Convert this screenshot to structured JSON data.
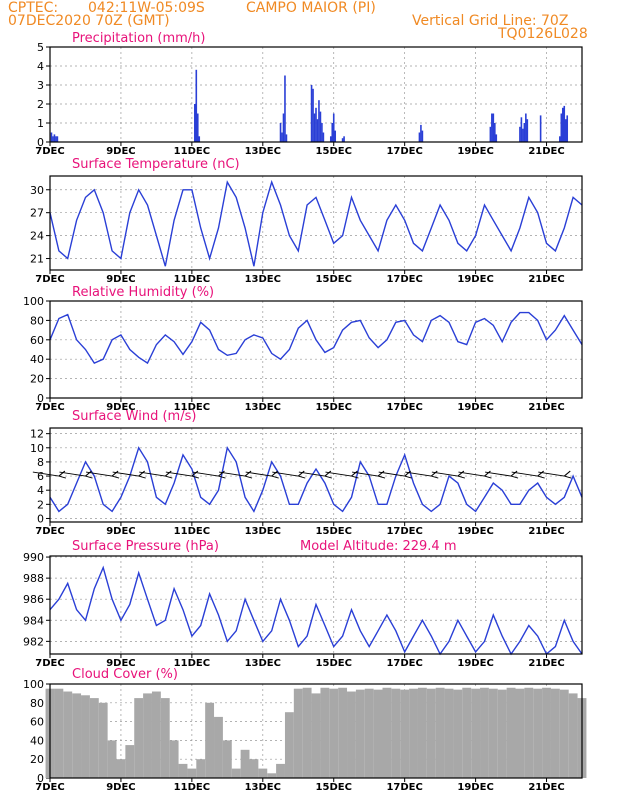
{
  "header": {
    "source": "CPTEC:",
    "coords": "042:11W-05:09S",
    "location": "CAMPO MAIOR (PI)",
    "run": "07DEC2020 70Z (GMT)",
    "grid_note": "Vertical Grid Line: 70Z",
    "code": "TQ0126L028"
  },
  "model_altitude": "Model Altitude: 229.4 m",
  "colors": {
    "header": "#f08a24",
    "title": "#e8127a",
    "series": "#2a3fd6",
    "wind": "#2a3fd6",
    "cloud": "#a8a8a8",
    "grid": "#9a9a9a"
  },
  "chart_data": [
    {
      "type": "bar",
      "title": "Precipitation (mm/h)",
      "ylim": [
        0,
        5
      ],
      "yticks": [
        0,
        1,
        2,
        3,
        4,
        5
      ],
      "grid": true,
      "x_tick_labels": [
        "7DEC",
        "9DEC",
        "11DEC",
        "13DEC",
        "15DEC",
        "17DEC",
        "19DEC",
        "21DEC"
      ],
      "x_unit": "hours since 07DEC 00Z",
      "bars": [
        [
          1,
          0.5
        ],
        [
          2,
          0.3
        ],
        [
          3,
          0.4
        ],
        [
          4,
          0.3
        ],
        [
          5,
          0.3
        ],
        [
          98,
          2.0
        ],
        [
          99,
          3.8
        ],
        [
          100,
          1.5
        ],
        [
          101,
          0.3
        ],
        [
          156,
          1.0
        ],
        [
          157,
          0.5
        ],
        [
          158,
          1.5
        ],
        [
          159,
          3.5
        ],
        [
          160,
          0.4
        ],
        [
          177,
          3.0
        ],
        [
          178,
          2.8
        ],
        [
          179,
          1.5
        ],
        [
          180,
          1.8
        ],
        [
          181,
          1.2
        ],
        [
          182,
          2.2
        ],
        [
          183,
          1.6
        ],
        [
          184,
          1.0
        ],
        [
          185,
          0.5
        ],
        [
          190,
          0.3
        ],
        [
          191,
          1.0
        ],
        [
          192,
          1.5
        ],
        [
          193,
          0.6
        ],
        [
          198,
          0.2
        ],
        [
          199,
          0.3
        ],
        [
          250,
          0.5
        ],
        [
          251,
          0.9
        ],
        [
          252,
          0.6
        ],
        [
          298,
          0.8
        ],
        [
          299,
          1.5
        ],
        [
          300,
          1.5
        ],
        [
          301,
          1.0
        ],
        [
          302,
          0.4
        ],
        [
          318,
          0.8
        ],
        [
          319,
          1.3
        ],
        [
          320,
          0.7
        ],
        [
          321,
          1.0
        ],
        [
          322,
          1.5
        ],
        [
          323,
          1.2
        ],
        [
          332,
          1.4
        ],
        [
          345,
          0.3
        ],
        [
          346,
          1.5
        ],
        [
          347,
          1.8
        ],
        [
          348,
          1.9
        ],
        [
          349,
          1.2
        ],
        [
          350,
          1.4
        ]
      ]
    },
    {
      "type": "line",
      "title": "Surface Temperature (nC)",
      "ylim": [
        19.5,
        31.8
      ],
      "yticks": [
        21,
        24,
        27,
        30
      ],
      "grid": true,
      "x": [
        0,
        6,
        12,
        18,
        24,
        30,
        36,
        42,
        48,
        54,
        60,
        66,
        72,
        78,
        84,
        90,
        96,
        102,
        108,
        114,
        120,
        126,
        132,
        138,
        144,
        150,
        156,
        162,
        168,
        174,
        180,
        186,
        192,
        198,
        204,
        210,
        216,
        222,
        228,
        234,
        240,
        246,
        252,
        258,
        264,
        270,
        276,
        282,
        288,
        294,
        300,
        306,
        312,
        318,
        324,
        330,
        336,
        342,
        348,
        354,
        360
      ],
      "values": [
        27,
        22,
        21,
        26,
        29,
        30,
        27,
        22,
        21,
        27,
        30,
        28,
        24,
        20,
        26,
        30,
        30,
        25,
        21,
        25,
        31,
        29,
        25,
        20,
        27,
        31,
        28,
        24,
        22,
        28,
        29,
        26,
        23,
        24,
        29,
        26,
        24,
        22,
        26,
        28,
        26,
        23,
        22,
        25,
        28,
        26,
        23,
        22,
        24,
        28,
        26,
        24,
        22,
        25,
        29,
        27,
        23,
        22,
        25,
        29,
        28
      ]
    },
    {
      "type": "line",
      "title": "Relative Humidity (%)",
      "ylim": [
        0,
        100
      ],
      "yticks": [
        0,
        20,
        40,
        60,
        80,
        100
      ],
      "grid": true,
      "x": [
        0,
        6,
        12,
        18,
        24,
        30,
        36,
        42,
        48,
        54,
        60,
        66,
        72,
        78,
        84,
        90,
        96,
        102,
        108,
        114,
        120,
        126,
        132,
        138,
        144,
        150,
        156,
        162,
        168,
        174,
        180,
        186,
        192,
        198,
        204,
        210,
        216,
        222,
        228,
        234,
        240,
        246,
        252,
        258,
        264,
        270,
        276,
        282,
        288,
        294,
        300,
        306,
        312,
        318,
        324,
        330,
        336,
        342,
        348,
        354,
        360
      ],
      "values": [
        60,
        82,
        86,
        60,
        50,
        36,
        40,
        60,
        65,
        50,
        42,
        36,
        55,
        65,
        58,
        45,
        58,
        78,
        70,
        50,
        44,
        46,
        60,
        65,
        62,
        46,
        40,
        50,
        72,
        80,
        60,
        47,
        52,
        70,
        78,
        80,
        62,
        52,
        60,
        78,
        80,
        65,
        58,
        80,
        85,
        78,
        58,
        55,
        78,
        82,
        75,
        58,
        78,
        88,
        88,
        80,
        60,
        70,
        85,
        70,
        55
      ]
    },
    {
      "type": "line",
      "title": "Surface Wind (m/s)",
      "ylim": [
        -0.5,
        12.8
      ],
      "yticks": [
        0,
        2,
        4,
        6,
        8,
        10,
        12
      ],
      "grid": true,
      "x": [
        0,
        6,
        12,
        18,
        24,
        30,
        36,
        42,
        48,
        54,
        60,
        66,
        72,
        78,
        84,
        90,
        96,
        102,
        108,
        114,
        120,
        126,
        132,
        138,
        144,
        150,
        156,
        162,
        168,
        174,
        180,
        186,
        192,
        198,
        204,
        210,
        216,
        222,
        228,
        234,
        240,
        246,
        252,
        258,
        264,
        270,
        276,
        282,
        288,
        294,
        300,
        306,
        312,
        318,
        324,
        330,
        336,
        342,
        348,
        354,
        360
      ],
      "values": [
        3,
        1,
        2,
        5,
        8,
        6,
        2,
        1,
        3,
        6,
        10,
        8,
        3,
        2,
        5,
        9,
        7,
        3,
        2,
        4,
        10,
        8,
        3,
        1,
        4,
        8,
        6,
        2,
        2,
        5,
        7,
        5,
        2,
        1,
        3,
        8,
        6,
        2,
        2,
        6,
        9,
        5,
        2,
        1,
        2,
        6,
        5,
        2,
        1,
        3,
        5,
        4,
        2,
        2,
        4,
        5,
        3,
        2,
        3,
        6,
        3
      ]
    },
    {
      "type": "line",
      "title": "Surface Pressure (hPa)",
      "ylim": [
        980.8,
        990.1
      ],
      "yticks": [
        982,
        984,
        986,
        988,
        990
      ],
      "grid": true,
      "x": [
        0,
        6,
        12,
        18,
        24,
        30,
        36,
        42,
        48,
        54,
        60,
        66,
        72,
        78,
        84,
        90,
        96,
        102,
        108,
        114,
        120,
        126,
        132,
        138,
        144,
        150,
        156,
        162,
        168,
        174,
        180,
        186,
        192,
        198,
        204,
        210,
        216,
        222,
        228,
        234,
        240,
        246,
        252,
        258,
        264,
        270,
        276,
        282,
        288,
        294,
        300,
        306,
        312,
        318,
        324,
        330,
        336,
        342,
        348,
        354,
        360
      ],
      "values": [
        985,
        986,
        987.5,
        985,
        984,
        987,
        989,
        986,
        984,
        985.5,
        988.5,
        986,
        983.5,
        984,
        987,
        985,
        982.5,
        983.5,
        986.5,
        984.5,
        982,
        983,
        986,
        984,
        982,
        983,
        986,
        984,
        981.5,
        982.5,
        985.5,
        983.5,
        981.5,
        982.5,
        985,
        983,
        981.5,
        983,
        984.5,
        983,
        981,
        982.5,
        984,
        982.5,
        980.8,
        982,
        984,
        982.5,
        981,
        982,
        984.5,
        982.5,
        980.8,
        982,
        983.5,
        982.5,
        980.8,
        981.5,
        984,
        982,
        980.8
      ]
    },
    {
      "type": "bar",
      "title": "Cloud Cover (%)",
      "ylim": [
        0,
        100
      ],
      "yticks": [
        0,
        20,
        40,
        60,
        80,
        100
      ],
      "grid": true,
      "x": [
        0,
        6,
        12,
        18,
        24,
        30,
        36,
        42,
        48,
        54,
        60,
        66,
        72,
        78,
        84,
        90,
        96,
        102,
        108,
        114,
        120,
        126,
        132,
        138,
        144,
        150,
        156,
        162,
        168,
        174,
        180,
        186,
        192,
        198,
        204,
        210,
        216,
        222,
        228,
        234,
        240,
        246,
        252,
        258,
        264,
        270,
        276,
        282,
        288,
        294,
        300,
        306,
        312,
        318,
        324,
        330,
        336,
        342,
        348,
        354,
        360
      ],
      "values": [
        95,
        95,
        92,
        90,
        88,
        85,
        80,
        40,
        20,
        35,
        85,
        90,
        92,
        85,
        40,
        15,
        10,
        20,
        80,
        65,
        40,
        10,
        30,
        20,
        10,
        5,
        15,
        70,
        95,
        96,
        90,
        96,
        95,
        96,
        92,
        94,
        95,
        94,
        96,
        95,
        94,
        95,
        96,
        95,
        96,
        95,
        94,
        96,
        95,
        96,
        95,
        94,
        96,
        95,
        96,
        95,
        96,
        95,
        94,
        90,
        85
      ]
    }
  ]
}
